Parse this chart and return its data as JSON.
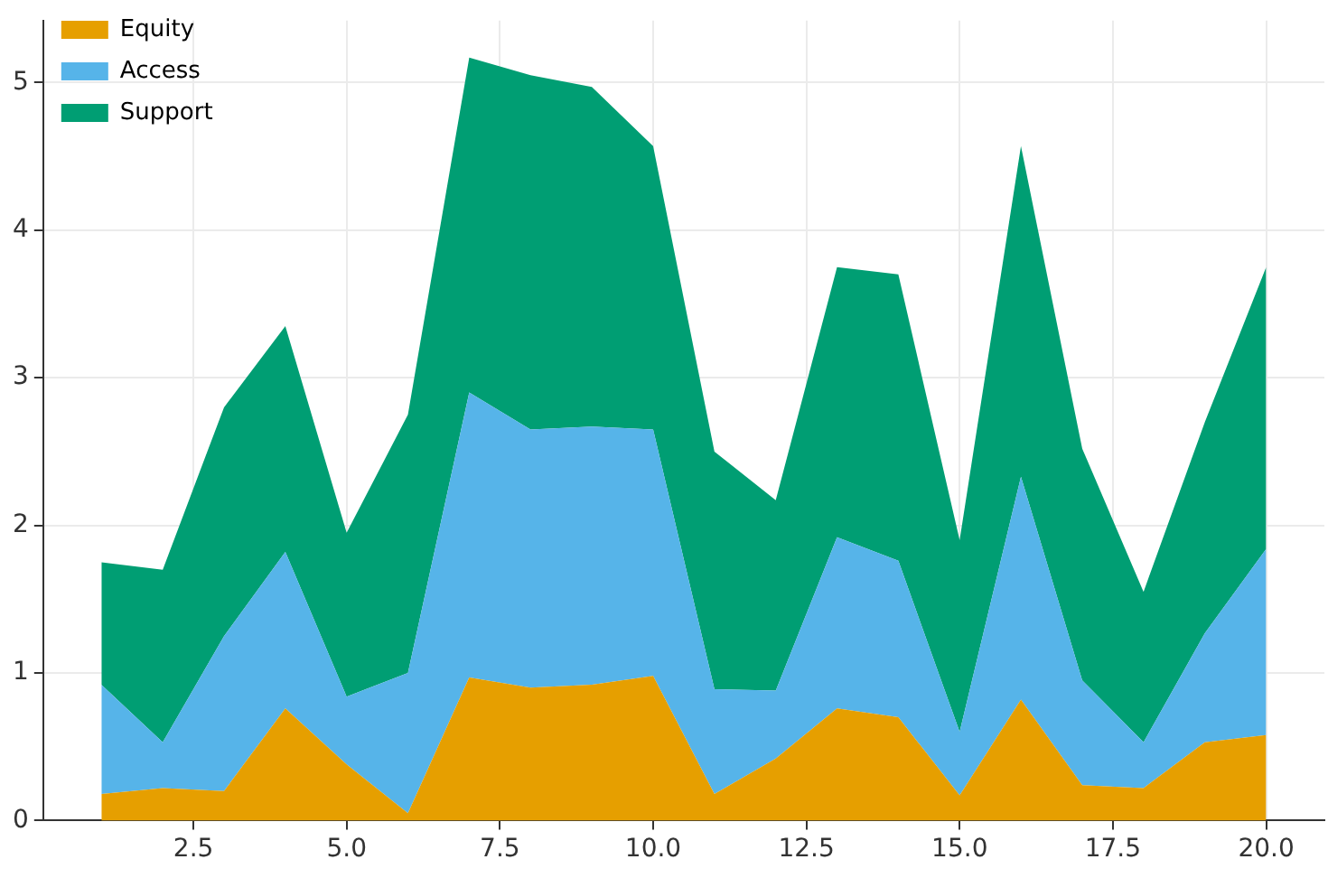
{
  "chart_data": {
    "type": "area",
    "stacked": true,
    "x": [
      1,
      2,
      3,
      4,
      5,
      6,
      7,
      8,
      9,
      10,
      11,
      12,
      13,
      14,
      15,
      16,
      17,
      18,
      19,
      20
    ],
    "series": [
      {
        "name": "Equity",
        "color": "#e69f00",
        "values": [
          0.18,
          0.22,
          0.2,
          0.76,
          0.38,
          0.05,
          0.97,
          0.9,
          0.92,
          0.98,
          0.18,
          0.42,
          0.76,
          0.7,
          0.17,
          0.82,
          0.24,
          0.22,
          0.53,
          0.58
        ]
      },
      {
        "name": "Access",
        "color": "#56b4e9",
        "values": [
          0.74,
          0.31,
          1.05,
          1.06,
          0.46,
          0.95,
          1.93,
          1.75,
          1.75,
          1.67,
          0.71,
          0.46,
          1.16,
          1.06,
          0.43,
          1.51,
          0.71,
          0.31,
          0.74,
          1.26
        ]
      },
      {
        "name": "Support",
        "color": "#009e73",
        "values": [
          0.83,
          1.17,
          1.55,
          1.53,
          1.11,
          1.75,
          2.27,
          2.4,
          2.3,
          1.92,
          1.61,
          1.29,
          1.83,
          1.94,
          1.3,
          2.24,
          1.57,
          1.02,
          1.43,
          1.91
        ]
      }
    ],
    "xlim": [
      0.05,
      20.95
    ],
    "ylim": [
      0,
      5.42
    ],
    "xticks": [
      {
        "value": 2.5,
        "label": "2.5"
      },
      {
        "value": 5,
        "label": "5.0"
      },
      {
        "value": 7.5,
        "label": "7.5"
      },
      {
        "value": 10,
        "label": "10.0"
      },
      {
        "value": 12.5,
        "label": "12.5"
      },
      {
        "value": 15,
        "label": "15.0"
      },
      {
        "value": 17.5,
        "label": "17.5"
      },
      {
        "value": 20,
        "label": "20.0"
      }
    ],
    "yticks": [
      0,
      1,
      2,
      3,
      4,
      5
    ],
    "grid": true,
    "legend": "top left"
  }
}
